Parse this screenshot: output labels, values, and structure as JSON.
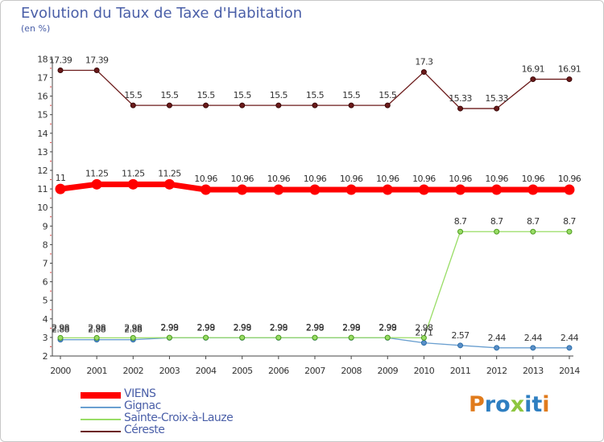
{
  "title": "Evolution du Taux de Taxe d'Habitation",
  "subtitle": "(en %)",
  "logo": "Proxiti",
  "colors": {
    "title": "#4a5fa8",
    "VIENS": "#ff0000",
    "Gignac": "#6a9fd0",
    "Sainte-Croix-à-Lauze": "#99dd66",
    "Céreste": "#6b1a1a"
  },
  "chart_data": {
    "type": "line",
    "title": "Evolution du Taux de Taxe d'Habitation",
    "ylabel": "(en %)",
    "x": [
      "2000",
      "2001",
      "2002",
      "2003",
      "2004",
      "2005",
      "2006",
      "2007",
      "2008",
      "2009",
      "2010",
      "2011",
      "2012",
      "2013",
      "2014"
    ],
    "ylim": [
      2,
      18
    ],
    "yticks": [
      "2",
      "3",
      "4",
      "5",
      "6",
      "7",
      "8",
      "9",
      "10",
      "11",
      "12",
      "13",
      "14",
      "15",
      "16",
      "17",
      "18"
    ],
    "legend": "bottom-left",
    "series": [
      {
        "name": "VIENS",
        "values": [
          11,
          11.25,
          11.25,
          11.25,
          10.96,
          10.96,
          10.96,
          10.96,
          10.96,
          10.96,
          10.96,
          10.96,
          10.96,
          10.96,
          10.96
        ],
        "labels": [
          "11",
          "11.25",
          "11.25",
          "11.25",
          "10.96",
          "10.96",
          "10.96",
          "10.96",
          "10.96",
          "10.96",
          "10.96",
          "10.96",
          "10.96",
          "10.96",
          "10.96"
        ]
      },
      {
        "name": "Gignac",
        "values": [
          2.88,
          2.88,
          2.88,
          2.98,
          2.98,
          2.98,
          2.98,
          2.98,
          2.98,
          2.98,
          2.71,
          2.57,
          2.44,
          2.44,
          2.44
        ],
        "labels": [
          "2.88",
          "2.88",
          "2.88",
          "2.98",
          "2.98",
          "2.98",
          "2.98",
          "2.98",
          "2.98",
          "2.98",
          "2.71",
          "2.57",
          "2.44",
          "2.44",
          "2.44"
        ]
      },
      {
        "name": "Sainte-Croix-à-Lauze",
        "values": [
          2.98,
          2.98,
          2.98,
          2.99,
          2.99,
          2.99,
          2.99,
          2.99,
          2.99,
          2.99,
          2.98,
          8.7,
          8.7,
          8.7,
          8.7
        ],
        "labels": [
          "2.98",
          "2.98",
          "2.98",
          "2.99",
          "2.99",
          "2.99",
          "2.99",
          "2.99",
          "2.99",
          "2.99",
          "2.98",
          "8.7",
          "8.7",
          "8.7",
          "8.7"
        ]
      },
      {
        "name": "Céreste",
        "values": [
          17.39,
          17.39,
          15.5,
          15.5,
          15.5,
          15.5,
          15.5,
          15.5,
          15.5,
          15.5,
          17.3,
          15.33,
          15.33,
          16.91,
          16.91
        ],
        "labels": [
          "17.39",
          "17.39",
          "15.5",
          "15.5",
          "15.5",
          "15.5",
          "15.5",
          "15.5",
          "15.5",
          "15.5",
          "17.3",
          "15.33",
          "15.33",
          "16.91",
          "16.91"
        ]
      }
    ]
  }
}
